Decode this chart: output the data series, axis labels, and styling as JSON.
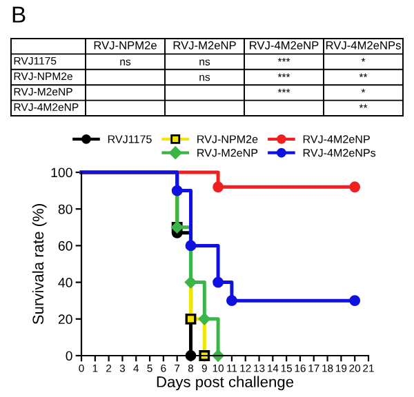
{
  "chart_data": [
    {
      "type": "heatmap",
      "title": "B",
      "categories": [
        "RVJ-NPM2e",
        "RVJ-M2eNP",
        "RVJ-4M2eNP",
        "RVJ-4M2eNPs"
      ],
      "y_categories": [
        "RVJ1175",
        "RVJ-NPM2e",
        "RVJ-M2eNP",
        "RVJ-4M2eNP"
      ],
      "cells": [
        [
          null,
          null,
          null,
          null
        ],
        [
          null,
          null,
          null,
          null
        ],
        [
          null,
          null,
          null,
          null
        ],
        [
          null,
          null,
          null,
          null
        ]
      ],
      "cell_labels": [
        [
          "ns",
          "ns",
          "***",
          "*"
        ],
        [
          null,
          "ns",
          "***",
          "**"
        ],
        [
          null,
          null,
          "***",
          "*"
        ],
        [
          null,
          null,
          null,
          "**"
        ]
      ]
    },
    {
      "type": "step",
      "xlabel": "Days post challenge",
      "ylabel": "Survivala rate (%)",
      "xlim": [
        0,
        21
      ],
      "xticks": [
        0,
        1,
        2,
        3,
        4,
        5,
        6,
        7,
        8,
        9,
        10,
        11,
        12,
        13,
        14,
        15,
        16,
        17,
        18,
        19,
        20,
        21
      ],
      "ylim": [
        0,
        100
      ],
      "yticks": [
        0,
        20,
        40,
        60,
        80,
        100
      ],
      "grid": false,
      "legend": "top",
      "series": [
        {
          "name": "RVJ1175",
          "color": "#000000",
          "marker": "circle",
          "x": [
            0,
            7,
            8
          ],
          "values": [
            100,
            67,
            0
          ]
        },
        {
          "name": "RVJ-NPM2e",
          "color": "#f2e600",
          "marker": "square",
          "x": [
            0,
            7,
            8,
            9
          ],
          "values": [
            100,
            70,
            20,
            0
          ]
        },
        {
          "name": "RVJ-M2eNP",
          "color": "#3cb44a",
          "marker": "diamond",
          "x": [
            0,
            7,
            8,
            9,
            10
          ],
          "values": [
            100,
            70,
            40,
            20,
            0
          ]
        },
        {
          "name": "RVJ-4M2eNP",
          "color": "#f02020",
          "marker": "circle",
          "x": [
            0,
            10,
            20
          ],
          "values": [
            100,
            92,
            92
          ]
        },
        {
          "name": "RVJ-4M2eNPs",
          "color": "#1010e0",
          "marker": "circle",
          "x": [
            0,
            7,
            8,
            10,
            11,
            20
          ],
          "values": [
            100,
            90,
            60,
            40,
            30,
            30
          ]
        }
      ]
    }
  ]
}
